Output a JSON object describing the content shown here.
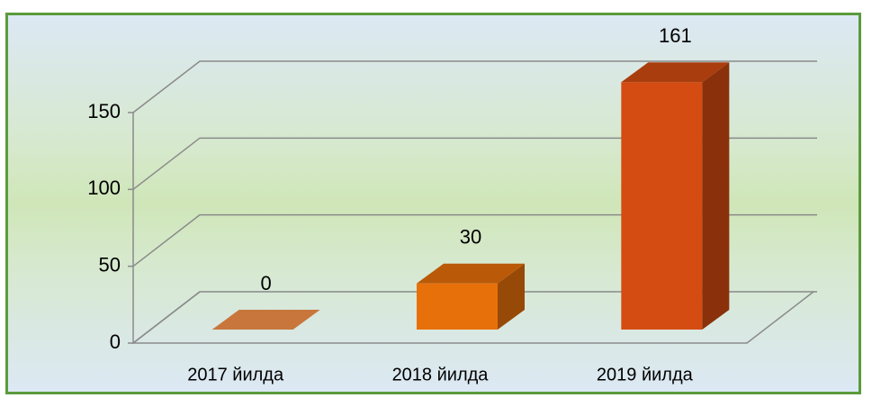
{
  "chart_data": {
    "type": "bar3d",
    "categories": [
      "2017 йилда",
      "2018 йилда",
      "2019 йилда"
    ],
    "values": [
      0,
      30,
      161
    ],
    "colors": [
      "#c8763c",
      "#e8700a",
      "#d44c11"
    ],
    "ylim": [
      0,
      150
    ],
    "yticks": [
      0,
      50,
      100,
      150
    ],
    "grid": true
  }
}
